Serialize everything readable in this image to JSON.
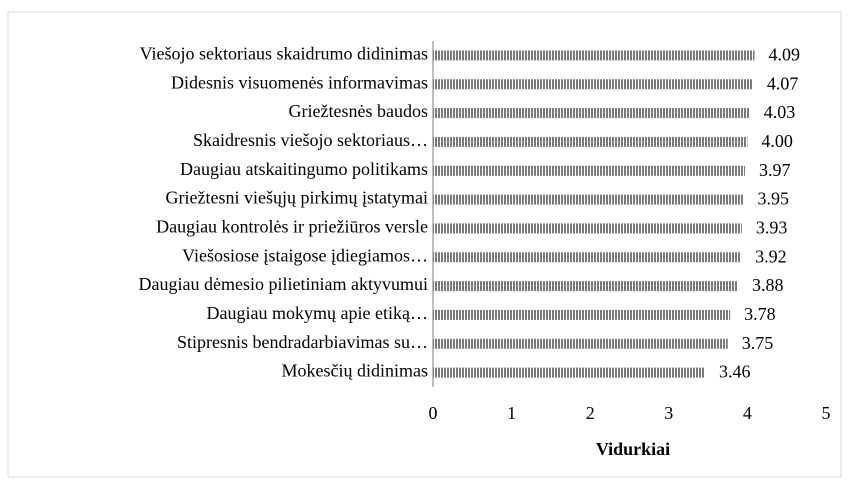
{
  "chart_data": {
    "type": "bar",
    "orientation": "horizontal",
    "categories": [
      "Viešojo sektoriaus skaidrumo didinimas",
      "Didesnis visuomenės informavimas",
      "Griežtesnės baudos",
      "Skaidresnis viešojo sektoriaus…",
      "Daugiau atskaitingumo politikams",
      "Griežtesni viešųjų pirkimų įstatymai",
      "Daugiau kontrolės ir priežiūros versle",
      "Viešosiose įstaigose įdiegiamos…",
      "Daugiau dėmesio pilietiniam aktyvumui",
      "Daugiau mokymų apie etiką…",
      "Stipresnis bendradarbiavimas su…",
      "Mokesčių didinimas"
    ],
    "values": [
      4.09,
      4.07,
      4.03,
      4.0,
      3.97,
      3.95,
      3.93,
      3.92,
      3.88,
      3.78,
      3.75,
      3.46
    ],
    "value_labels": [
      "4.09",
      "4.07",
      "4.03",
      "4.00",
      "3.97",
      "3.95",
      "3.93",
      "3.92",
      "3.88",
      "3.78",
      "3.75",
      "3.46"
    ],
    "color": "#808080",
    "xlabel": "Vidurkiai",
    "xlim": [
      0,
      5
    ],
    "xticks": [
      0,
      1,
      2,
      3,
      4,
      5
    ]
  }
}
